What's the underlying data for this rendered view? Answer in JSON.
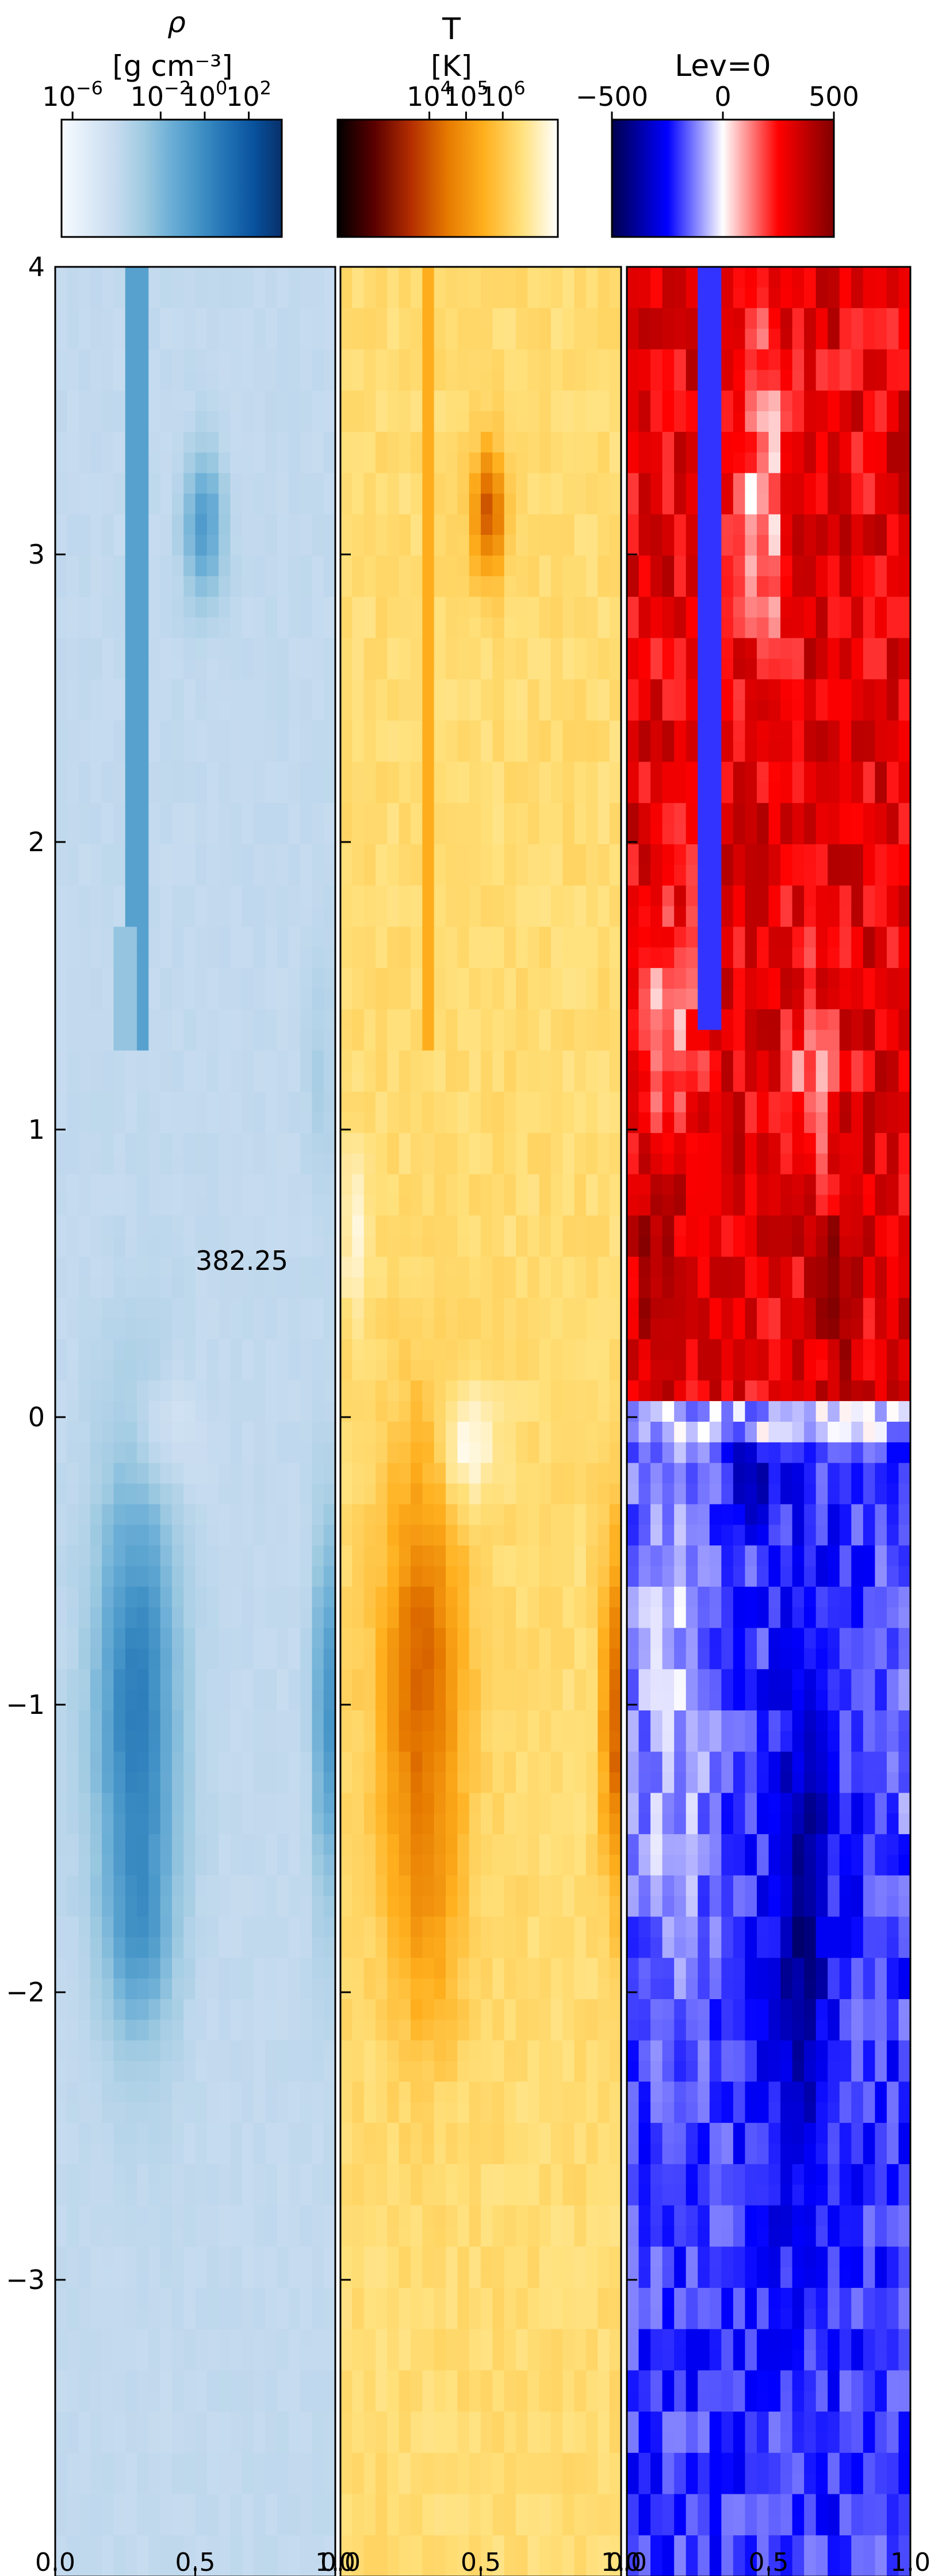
{
  "chart_data": [
    {
      "type": "heatmap",
      "title": "ρ",
      "units": "[g cm⁻³]",
      "colormap": "Blues",
      "colormap_stops": [
        "#f7fbff",
        "#deebf7",
        "#c6dbef",
        "#9ecae1",
        "#6baed6",
        "#4292c6",
        "#2171b5",
        "#08519c",
        "#08306b"
      ],
      "scale": "log",
      "colorbar_ticks": [
        {
          "value": -6,
          "base": "10",
          "exp": "−6"
        },
        {
          "value": -2,
          "base": "10",
          "exp": "−2"
        },
        {
          "value": 0,
          "base": "10",
          "exp": "0"
        },
        {
          "value": 2,
          "base": "10",
          "exp": "2"
        }
      ],
      "colorbar_range": [
        -6.5,
        3.5
      ],
      "xlim": [
        0.0,
        1.0
      ],
      "ylim": [
        -4.0,
        4.0
      ],
      "x_ticks": [
        "0.0",
        "0.5",
        "1.0"
      ],
      "y_ticks": [
        "4",
        "3",
        "2",
        "1",
        "0",
        "−1",
        "−2",
        "−3"
      ],
      "annotation": "382.25"
    },
    {
      "type": "heatmap",
      "title": "T",
      "units": "[K]",
      "colormap": "afmhot",
      "colormap_stops": [
        "#000000",
        "#5a0000",
        "#b42d00",
        "#e67a00",
        "#ffb01e",
        "#ffe07a",
        "#ffffff"
      ],
      "scale": "log",
      "colorbar_ticks": [
        {
          "value": 4,
          "base": "10",
          "exp": "4"
        },
        {
          "value": 5,
          "base": "10",
          "exp": "5"
        },
        {
          "value": 6,
          "base": "10",
          "exp": "6"
        }
      ],
      "colorbar_range": [
        1.5,
        7.5
      ],
      "xlim": [
        0.0,
        1.0
      ],
      "ylim": [
        -4.0,
        4.0
      ],
      "x_ticks": [
        "0.0",
        "0.5",
        "1.0"
      ]
    },
    {
      "type": "heatmap",
      "title": "Lev=0",
      "colormap": "seismic",
      "colormap_stops": [
        "#00004c",
        "#0000ff",
        "#ffffff",
        "#ff0000",
        "#800000"
      ],
      "scale": "linear",
      "colorbar_ticks": [
        {
          "value": -500,
          "label": "−500"
        },
        {
          "value": 0,
          "label": "0"
        },
        {
          "value": 500,
          "label": "500"
        }
      ],
      "colorbar_range": [
        -500,
        500
      ],
      "xlim": [
        0.0,
        1.0
      ],
      "ylim": [
        -4.0,
        4.0
      ],
      "x_ticks": [
        "0.0",
        "0.5",
        "1.0"
      ]
    }
  ]
}
